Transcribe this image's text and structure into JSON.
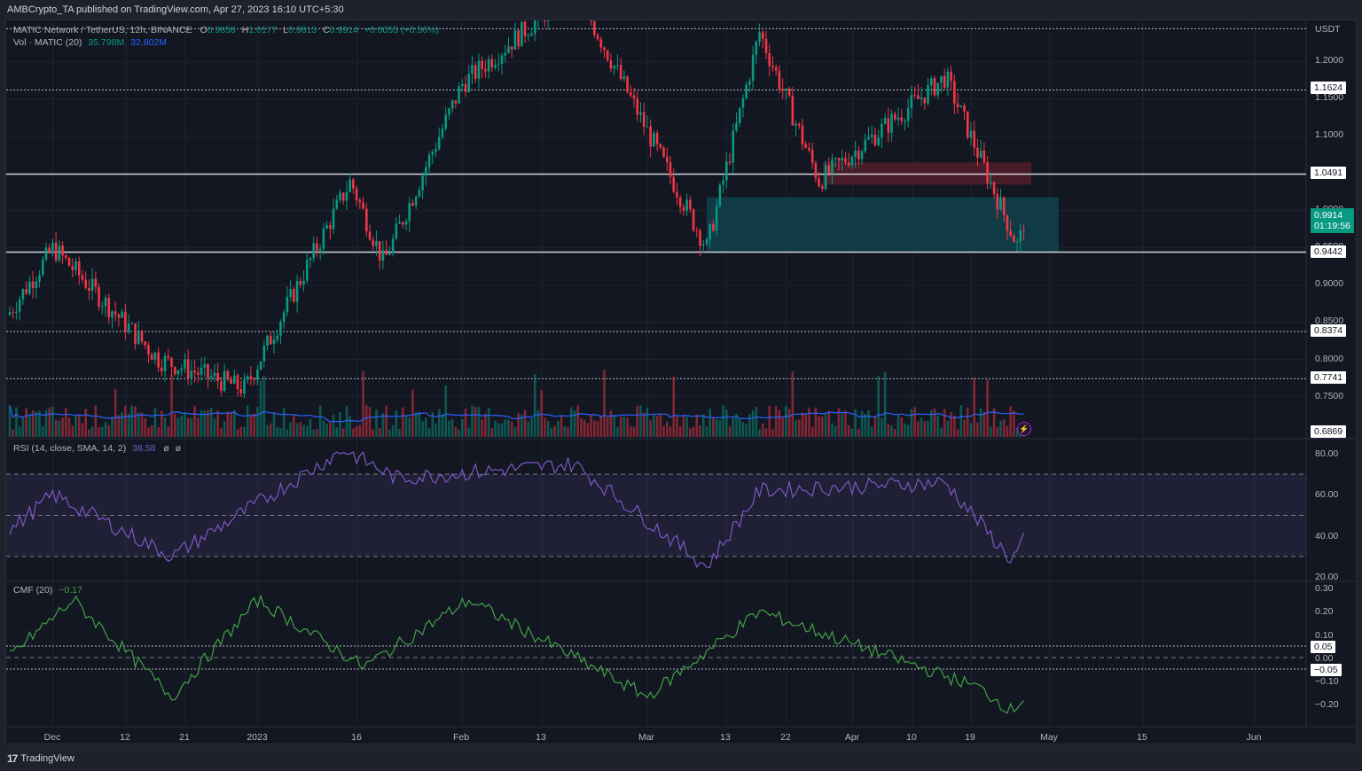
{
  "header": {
    "published": "AMBCrypto_TA published on TradingView.com, Apr 27, 2023 16:10 UTC+5:30"
  },
  "symbol_legend": {
    "name": "MATIC Network / TetherUS, 12h, BINANCE",
    "o_label": "O",
    "o": "0.9858",
    "h_label": "H",
    "h": "1.0177",
    "l_label": "L",
    "l": "0.9813",
    "c_label": "C",
    "c": "0.9914",
    "change": "+0.0055 (+0.56%)"
  },
  "volume_legend": {
    "name": "Vol · MATIC (20)",
    "value": "35.798M",
    "ma": "32.802M"
  },
  "rsi_legend": {
    "name": "RSI (14, close, SMA, 14, 2)",
    "value": "38.58",
    "extra1": "ø",
    "extra2": "ø"
  },
  "cmf_legend": {
    "name": "CMF (20)",
    "value": "−0.17"
  },
  "price_axis": {
    "currency": "USDT",
    "ticks": [
      "1.2000",
      "1.1500",
      "1.1000",
      "1.0000",
      "0.9500",
      "0.9000",
      "0.8500",
      "0.8000",
      "0.7500"
    ],
    "tags": [
      "1.1624",
      "1.0491",
      "0.9442",
      "0.8374",
      "0.7741",
      "0.6869"
    ],
    "last_price": "0.9914",
    "countdown": "01:19:56"
  },
  "rsi_axis": {
    "ticks": [
      "80.00",
      "60.00",
      "40.00",
      "20.00"
    ]
  },
  "cmf_axis": {
    "ticks": [
      "0.30",
      "0.20",
      "0.10",
      "0.00",
      "−0.10",
      "−0.20"
    ],
    "tags": [
      "0.05",
      "−0.05"
    ]
  },
  "time_axis": {
    "labels": [
      "Dec",
      "12",
      "21",
      "2023",
      "16",
      "Feb",
      "13",
      "Mar",
      "13",
      "22",
      "Apr",
      "10",
      "19",
      "May",
      "15",
      "Jun"
    ]
  },
  "footer": {
    "brand": "TradingView"
  },
  "colors": {
    "up": "#089981",
    "down": "#f23645",
    "rsi": "#7e57c2",
    "cmf": "#43a047",
    "vol_ma": "#2962ff",
    "demand_zone": "#0e4a55",
    "supply_zone": "#5a1f2b",
    "background": "#131722"
  },
  "chart_data": [
    {
      "type": "candlestick",
      "title": "MATIC Network / TetherUS, 12h, BINANCE",
      "ylabel": "USDT",
      "ylim": [
        0.68,
        1.24
      ],
      "x_range": [
        "Nov 28 2022",
        "Jun 2023"
      ],
      "horizontal_levels": [
        {
          "value": 1.2448,
          "style": "dotted"
        },
        {
          "value": 1.1624,
          "style": "dotted"
        },
        {
          "value": 1.0491,
          "style": "solid"
        },
        {
          "value": 0.9442,
          "style": "solid"
        },
        {
          "value": 0.8374,
          "style": "dotted"
        },
        {
          "value": 0.7741,
          "style": "dotted"
        }
      ],
      "zones": [
        {
          "name": "supply",
          "from": 1.035,
          "to": 1.065,
          "x_start": "Mar 26",
          "x_end": "Apr 26"
        },
        {
          "name": "demand",
          "from": 0.9442,
          "to": 1.018,
          "x_start": "Mar 10",
          "x_end": "Apr 28"
        }
      ],
      "key_points": [
        {
          "date": "Dec 1",
          "price": 0.95
        },
        {
          "date": "Dec 17",
          "price": 0.8
        },
        {
          "date": "Dec 30",
          "price": 0.76
        },
        {
          "date": "Jan 15",
          "price": 1.04
        },
        {
          "date": "Jan 20",
          "price": 0.93
        },
        {
          "date": "Feb 1",
          "price": 1.17
        },
        {
          "date": "Feb 18",
          "price": 1.3
        },
        {
          "date": "Mar 10",
          "price": 0.95
        },
        {
          "date": "Mar 18",
          "price": 1.24
        },
        {
          "date": "Mar 27",
          "price": 1.04
        },
        {
          "date": "Apr 15",
          "price": 1.18
        },
        {
          "date": "Apr 26",
          "price": 0.95
        },
        {
          "date": "Apr 27",
          "price": 0.9914
        }
      ],
      "last": {
        "open": 0.9858,
        "high": 1.0177,
        "low": 0.9813,
        "close": 0.9914
      }
    },
    {
      "type": "bar",
      "title": "Vol · MATIC (20)",
      "last_volume": "35.798M",
      "ma20": "32.802M"
    },
    {
      "type": "line",
      "title": "RSI (14, close, SMA, 14, 2)",
      "ylim": [
        20,
        85
      ],
      "bands": [
        30,
        50,
        70
      ],
      "key_points": [
        {
          "date": "Dec 1",
          "value": 60
        },
        {
          "date": "Dec 19",
          "value": 30
        },
        {
          "date": "Jan 14",
          "value": 82
        },
        {
          "date": "Jan 22",
          "value": 68
        },
        {
          "date": "Feb 18",
          "value": 75
        },
        {
          "date": "Mar 10",
          "value": 25
        },
        {
          "date": "Mar 18",
          "value": 62
        },
        {
          "date": "Apr 15",
          "value": 66
        },
        {
          "date": "Apr 25",
          "value": 28
        },
        {
          "date": "Apr 27",
          "value": 38.58
        }
      ]
    },
    {
      "type": "line",
      "title": "CMF (20)",
      "ylim": [
        -0.25,
        0.3
      ],
      "levels": [
        0.05,
        0,
        -0.05
      ],
      "key_points": [
        {
          "date": "Dec 4",
          "value": 0.25
        },
        {
          "date": "Dec 19",
          "value": -0.17
        },
        {
          "date": "Jan 1",
          "value": 0.25
        },
        {
          "date": "Jan 17",
          "value": -0.04
        },
        {
          "date": "Feb 2",
          "value": 0.25
        },
        {
          "date": "Mar 1",
          "value": -0.17
        },
        {
          "date": "Mar 18",
          "value": 0.2
        },
        {
          "date": "Apr 20",
          "value": -0.13
        },
        {
          "date": "Apr 25",
          "value": -0.23
        },
        {
          "date": "Apr 27",
          "value": -0.17
        }
      ]
    }
  ]
}
